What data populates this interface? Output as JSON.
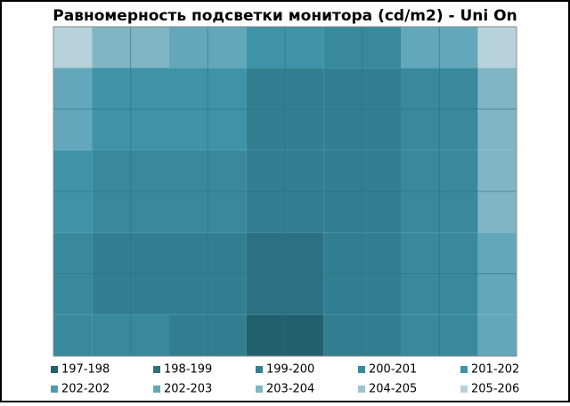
{
  "chart_data": {
    "type": "contour",
    "title": "Равномерность  подсветки  монитора  (cd/m2) - Uni On",
    "z": [
      [
        205.5,
        203.5,
        202.5,
        201,
        200.5,
        202,
        205.5
      ],
      [
        202,
        201.5,
        201,
        199.5,
        199.5,
        200.5,
        203.5
      ],
      [
        201,
        200.5,
        200,
        199.5,
        199.5,
        200.5,
        203
      ],
      [
        200.5,
        199.5,
        199,
        198.5,
        199,
        200,
        202.5
      ],
      [
        200.5,
        200,
        199,
        197.5,
        199,
        200,
        202
      ]
    ],
    "bands": [
      {
        "label": "197-198",
        "min": 197,
        "max": 198,
        "color": "#23606e"
      },
      {
        "label": "198-199",
        "min": 198,
        "max": 199,
        "color": "#2b7182"
      },
      {
        "label": "199-200",
        "min": 199,
        "max": 200,
        "color": "#327f91"
      },
      {
        "label": "200-201",
        "min": 200,
        "max": 201,
        "color": "#38899c"
      },
      {
        "label": "201-202",
        "min": 201,
        "max": 202,
        "color": "#3e93a8"
      },
      {
        "label": "202-202",
        "min": 202,
        "max": 202,
        "color": "#4b9db2"
      },
      {
        "label": "202-203",
        "min": 202,
        "max": 203,
        "color": "#62a8ba"
      },
      {
        "label": "203-204",
        "min": 203,
        "max": 204,
        "color": "#80b5c4"
      },
      {
        "label": "204-205",
        "min": 204,
        "max": 205,
        "color": "#9dc4cf"
      },
      {
        "label": "205-206",
        "min": 205,
        "max": 206,
        "color": "#b7d2da"
      }
    ],
    "grid": true
  }
}
